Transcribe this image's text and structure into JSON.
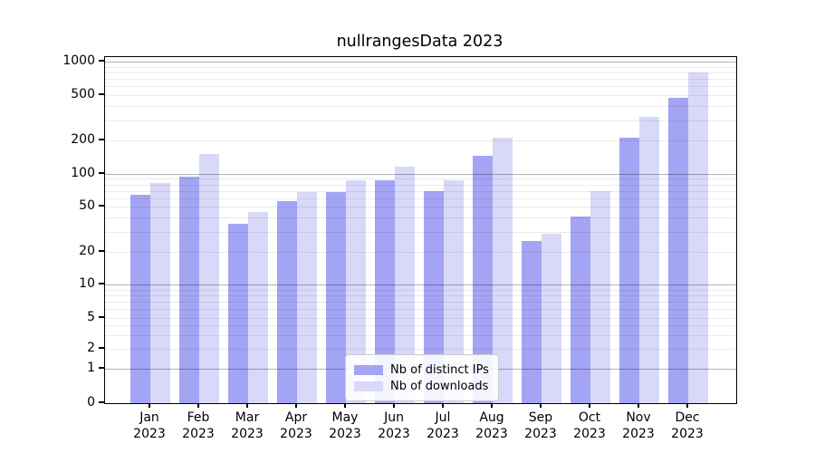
{
  "chart_data": {
    "type": "bar",
    "title": "nullrangesData 2023",
    "categories": [
      {
        "month": "Jan",
        "year": "2023"
      },
      {
        "month": "Feb",
        "year": "2023"
      },
      {
        "month": "Mar",
        "year": "2023"
      },
      {
        "month": "Apr",
        "year": "2023"
      },
      {
        "month": "May",
        "year": "2023"
      },
      {
        "month": "Jun",
        "year": "2023"
      },
      {
        "month": "Jul",
        "year": "2023"
      },
      {
        "month": "Aug",
        "year": "2023"
      },
      {
        "month": "Sep",
        "year": "2023"
      },
      {
        "month": "Oct",
        "year": "2023"
      },
      {
        "month": "Nov",
        "year": "2023"
      },
      {
        "month": "Dec",
        "year": "2023"
      }
    ],
    "series": [
      {
        "name": "Nb of distinct IPs",
        "color": "#a4a4f4",
        "values": [
          64,
          94,
          35,
          56,
          68,
          87,
          70,
          145,
          25,
          41,
          210,
          475
        ]
      },
      {
        "name": "Nb of downloads",
        "color": "#d8d8f8",
        "values": [
          82,
          150,
          45,
          68,
          88,
          117,
          88,
          212,
          29,
          70,
          325,
          800
        ]
      }
    ],
    "xlabel": "",
    "ylabel": "",
    "y_axis": {
      "scale": "log-like-with-zero",
      "ticks": [
        0,
        1,
        2,
        5,
        10,
        20,
        50,
        100,
        200,
        500,
        1000
      ],
      "ylim": [
        0,
        1000
      ]
    },
    "grid": "major-and-minor, drawn over bars",
    "legend_position": "inside-bottom-center",
    "colors": {
      "major_gridline": "#b3b3b3",
      "minor_gridline": "#ebebeb",
      "axis": "#000000",
      "background": "#ffffff"
    }
  }
}
